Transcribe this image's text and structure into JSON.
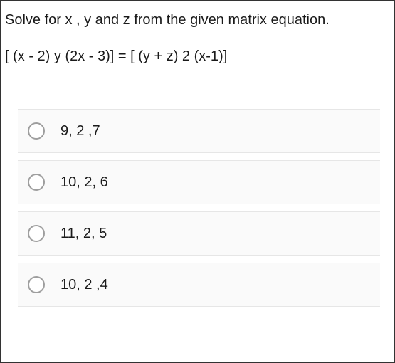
{
  "question": {
    "prompt": "Solve for x , y and z from the given matrix equation.",
    "equation": "[ (x - 2) y (2x - 3)] = [ (y + z) 2 (x-1)]"
  },
  "options": [
    {
      "label": "9, 2 ,7"
    },
    {
      "label": "10, 2, 6"
    },
    {
      "label": "11, 2, 5"
    },
    {
      "label": "10, 2 ,4"
    }
  ],
  "styles": {
    "background_color": "#ffffff",
    "option_background": "#fafafa",
    "border_color": "#e6e6e6",
    "radio_border_color": "#9e9e9e",
    "text_color": "#1a1a1a",
    "question_fontsize": 20,
    "option_fontsize": 20
  }
}
